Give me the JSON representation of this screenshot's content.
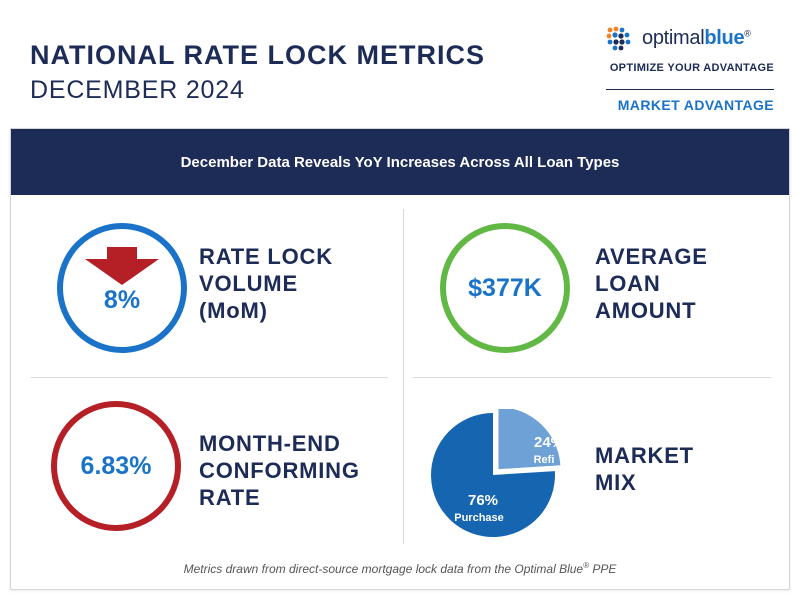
{
  "header": {
    "title_line1": "NATIONAL RATE LOCK METRICS",
    "title_line2": "DECEMBER 2024"
  },
  "brand": {
    "logo_prefix": "optimal",
    "logo_suffix": "blue",
    "logo_mark": "®",
    "tagline": "OPTIMIZE YOUR ADVANTAGE",
    "section": "MARKET ADVANTAGE"
  },
  "banner": {
    "text": "December Data Reveals YoY Increases Across All Loan Types"
  },
  "metrics": {
    "rate_lock": {
      "value": "8%",
      "direction": "down",
      "label_lines": [
        "RATE LOCK",
        "VOLUME",
        "(MoM)"
      ]
    },
    "avg_loan": {
      "value": "$377K",
      "label_lines": [
        "AVERAGE",
        "LOAN",
        "AMOUNT"
      ]
    },
    "conforming_rate": {
      "value": "6.83%",
      "label_lines": [
        "MONTH-END",
        "CONFORMING",
        "RATE"
      ]
    },
    "market_mix": {
      "label_lines": [
        "MARKET",
        "MIX"
      ]
    }
  },
  "chart_data": {
    "type": "pie",
    "categories": [
      "Purchase",
      "Refi"
    ],
    "values": [
      76,
      24
    ],
    "labels": [
      "76%",
      "24%"
    ]
  },
  "colors": {
    "navy": "#1d2b57",
    "blue": "#1a73c8",
    "pie_purchase": "#1565b0",
    "pie_refi": "#6ea2d6",
    "green": "#62b845",
    "red": "#b51f26",
    "logo_orange": "#f58220"
  },
  "footnote": {
    "prefix": "Metrics drawn from direct-source mortgage lock data from the Optimal Blue",
    "mark": "®",
    "suffix": " PPE"
  }
}
